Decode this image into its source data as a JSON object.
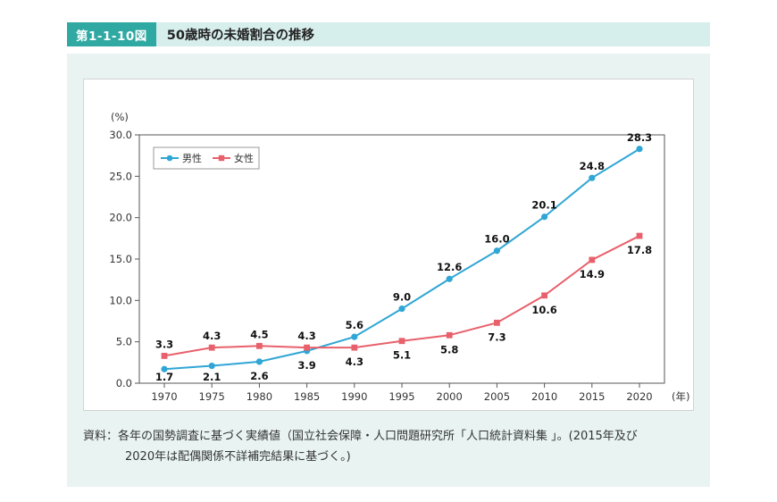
{
  "figure": {
    "badge": "第1-1-10図",
    "title": "50歳時の未婚割合の推移"
  },
  "chart_data": {
    "type": "line",
    "categories": [
      "1970",
      "1975",
      "1980",
      "1985",
      "1990",
      "1995",
      "2000",
      "2005",
      "2010",
      "2015",
      "2020"
    ],
    "x_unit_label": "(年)",
    "y_unit_label": "(%)",
    "ylim": [
      0,
      30
    ],
    "ytick": 5,
    "ytick_labels": [
      "0.0",
      "5.0",
      "10.0",
      "15.0",
      "20.0",
      "25.0",
      "30.0"
    ],
    "grid": false,
    "legend_position": "top-left",
    "series": [
      {
        "name": "男性",
        "color": "#2fa6d5",
        "marker": "circle",
        "values": [
          1.7,
          2.1,
          2.6,
          3.9,
          5.6,
          9.0,
          12.6,
          16.0,
          20.1,
          24.8,
          28.3
        ]
      },
      {
        "name": "女性",
        "color": "#e8606b",
        "marker": "square",
        "values": [
          3.3,
          4.3,
          4.5,
          4.3,
          4.3,
          5.1,
          5.8,
          7.3,
          10.6,
          14.9,
          17.8
        ]
      }
    ]
  },
  "source": {
    "line1": "資料：各年の国勢調査に基づく実績値（国立社会保障・人口問題研究所「人口統計資料集 」。(2015年及び",
    "line2": "2020年は配偶関係不詳補完結果に基づく。)"
  }
}
